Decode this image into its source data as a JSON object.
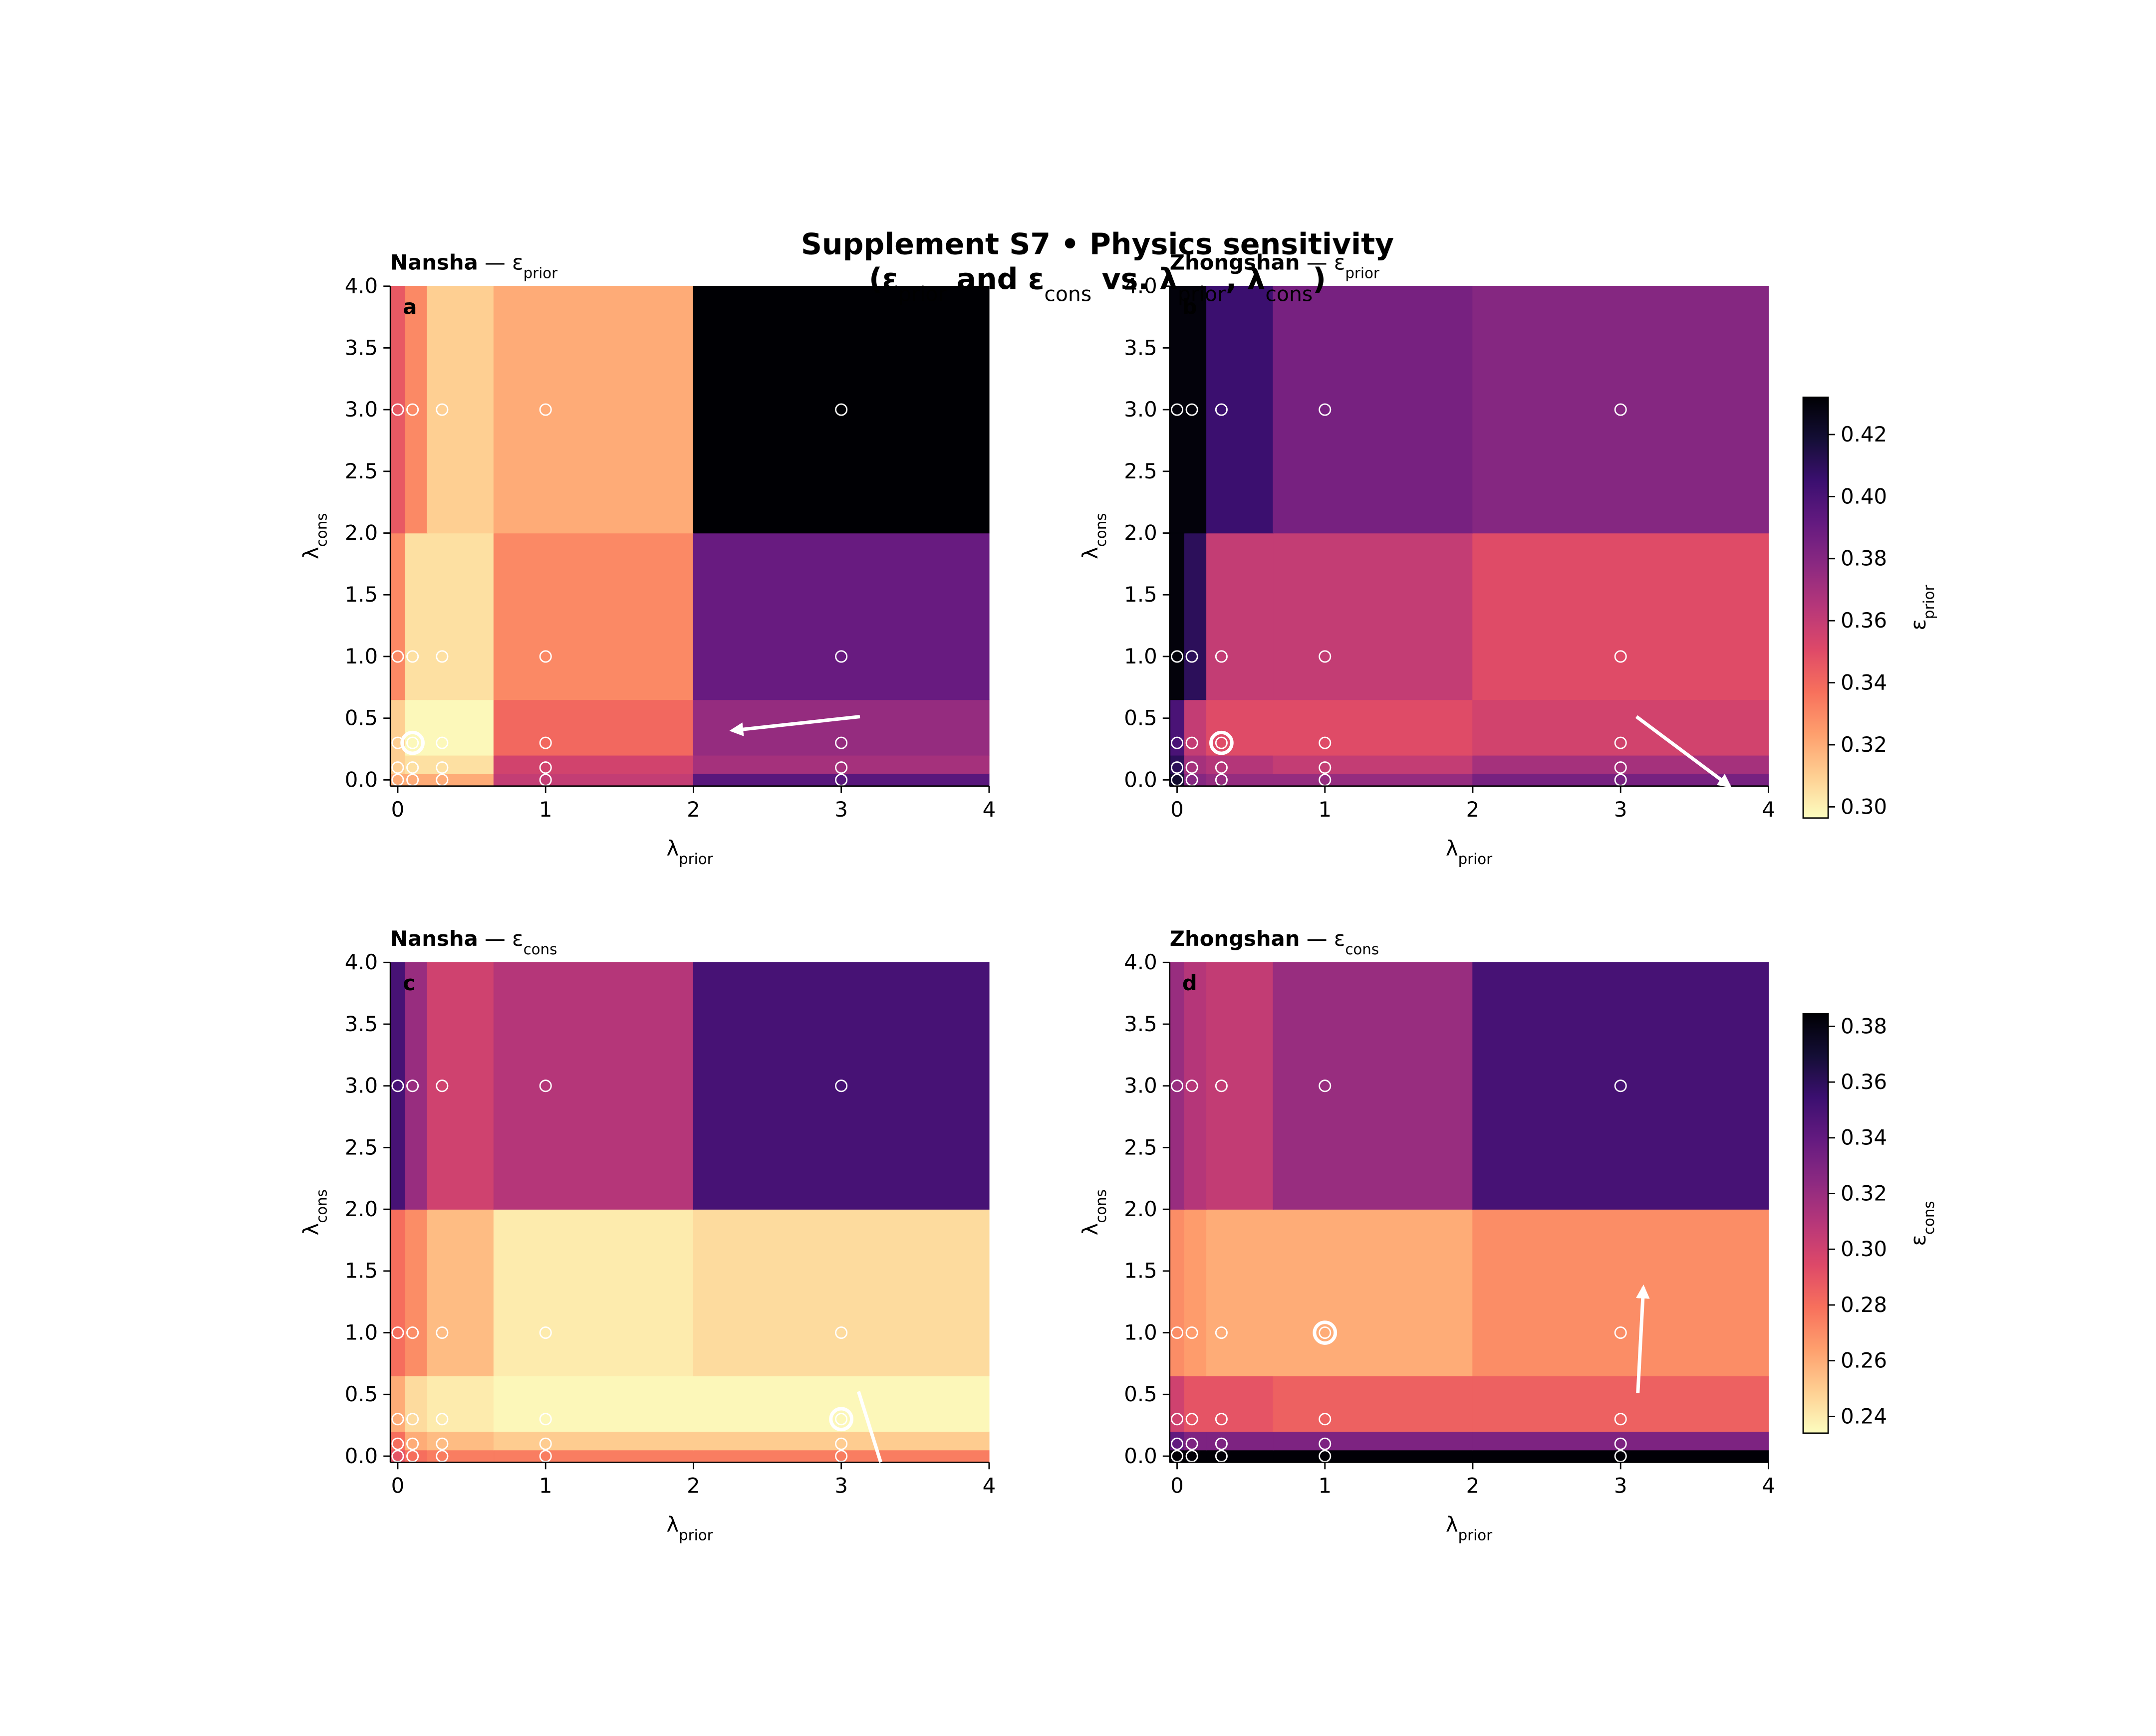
{
  "figure": {
    "title": [
      {
        "text": "Supplement S7 • Physics sensitivity",
        "bold": true
      }
    ],
    "subtitle": [
      {
        "text": "(ε",
        "bold": true
      },
      {
        "text": "prior",
        "sub": true
      },
      {
        "text": " and ε",
        "bold": true
      },
      {
        "text": "cons",
        "sub": true
      },
      {
        "text": " vs. λ",
        "bold": true
      },
      {
        "text": "prior",
        "sub": true
      },
      {
        "text": ", λ",
        "bold": true
      },
      {
        "text": "cons",
        "sub": true
      },
      {
        "text": ")",
        "bold": true
      }
    ]
  },
  "chart_data": [
    {
      "type": "heatmap",
      "panel_label": "a",
      "title": [
        {
          "text": "Nansha",
          "bold": true
        },
        {
          "text": " — ε"
        },
        {
          "text": "prior",
          "sub": true
        }
      ],
      "xlabel": [
        {
          "text": "λ"
        },
        {
          "text": "prior",
          "sub": true
        }
      ],
      "ylabel": [
        {
          "text": "λ"
        },
        {
          "text": "cons",
          "sub": true
        }
      ],
      "x": [
        0,
        0.1,
        0.3,
        1,
        3
      ],
      "y": [
        0,
        0.1,
        0.3,
        1,
        3
      ],
      "values": [
        [
          0.32,
          0.32,
          0.32,
          0.36,
          0.395
        ],
        [
          0.31,
          0.305,
          0.305,
          0.355,
          0.37
        ],
        [
          0.31,
          0.298,
          0.298,
          0.34,
          0.375
        ],
        [
          0.33,
          0.305,
          0.305,
          0.33,
          0.39
        ],
        [
          0.345,
          0.33,
          0.31,
          0.32,
          0.432
        ]
      ],
      "best": {
        "x": 0.1,
        "y": 0.3
      },
      "xlim": [
        -0.05,
        4
      ],
      "ylim": [
        -0.05,
        4
      ],
      "xticks": [
        0,
        1,
        2,
        3,
        4
      ],
      "yticks": [
        {
          "value": 0,
          "label": "0.0"
        },
        0.5,
        {
          "value": 1,
          "label": "1.0"
        },
        1.5,
        {
          "value": 2,
          "label": "2.0"
        },
        2.5,
        {
          "value": 3,
          "label": "3.0"
        },
        3.5,
        {
          "value": 4,
          "label": "4.0"
        }
      ]
    },
    {
      "type": "heatmap",
      "panel_label": "b",
      "title": [
        {
          "text": "Zhongshan",
          "bold": true
        },
        {
          "text": " — ε"
        },
        {
          "text": "prior",
          "sub": true
        }
      ],
      "xlabel": [
        {
          "text": "λ"
        },
        {
          "text": "prior",
          "sub": true
        }
      ],
      "ylabel": [
        {
          "text": "λ"
        },
        {
          "text": "cons",
          "sub": true
        }
      ],
      "x": [
        0,
        0.1,
        0.3,
        1,
        3
      ],
      "y": [
        0,
        0.1,
        0.3,
        1,
        3
      ],
      "values": [
        [
          0.42,
          0.38,
          0.375,
          0.375,
          0.385
        ],
        [
          0.41,
          0.37,
          0.365,
          0.36,
          0.37
        ],
        [
          0.4,
          0.36,
          0.35,
          0.35,
          0.355
        ],
        [
          0.43,
          0.41,
          0.36,
          0.36,
          0.35
        ],
        [
          0.43,
          0.43,
          0.405,
          0.385,
          0.38
        ]
      ],
      "best": {
        "x": 0.3,
        "y": 0.3
      },
      "xlim": [
        -0.05,
        4
      ],
      "ylim": [
        -0.05,
        4
      ],
      "xticks": [
        0,
        1,
        2,
        3,
        4
      ],
      "yticks": [
        {
          "value": 0,
          "label": "0.0"
        },
        0.5,
        {
          "value": 1,
          "label": "1.0"
        },
        1.5,
        {
          "value": 2,
          "label": "2.0"
        },
        2.5,
        {
          "value": 3,
          "label": "3.0"
        },
        3.5,
        {
          "value": 4,
          "label": "4.0"
        }
      ],
      "colorbar": {
        "label": [
          {
            "text": "ε"
          },
          {
            "text": "prior",
            "sub": true
          }
        ],
        "cmap": "magma_r",
        "lim": [
          0.2964,
          0.432
        ],
        "ticks": [
          {
            "value": 0.3,
            "label": "0.30"
          },
          0.32,
          0.34,
          0.36,
          0.38,
          {
            "value": 0.4,
            "label": "0.40"
          },
          0.42
        ]
      }
    },
    {
      "type": "heatmap",
      "panel_label": "c",
      "title": [
        {
          "text": "Nansha",
          "bold": true
        },
        {
          "text": " — ε"
        },
        {
          "text": "cons",
          "sub": true
        }
      ],
      "xlabel": [
        {
          "text": "λ"
        },
        {
          "text": "prior",
          "sub": true
        }
      ],
      "ylabel": [
        {
          "text": "λ"
        },
        {
          "text": "cons",
          "sub": true
        }
      ],
      "x": [
        0,
        0.1,
        0.3,
        1,
        3
      ],
      "y": [
        0,
        0.1,
        0.3,
        1,
        3
      ],
      "values": [
        [
          0.29,
          0.28,
          0.275,
          0.275,
          0.275
        ],
        [
          0.28,
          0.26,
          0.255,
          0.25,
          0.25
        ],
        [
          0.26,
          0.245,
          0.24,
          0.236,
          0.236
        ],
        [
          0.28,
          0.27,
          0.255,
          0.24,
          0.245
        ],
        [
          0.35,
          0.32,
          0.3,
          0.31,
          0.35
        ]
      ],
      "best": {
        "x": 3,
        "y": 0.3
      },
      "xlim": [
        -0.05,
        4
      ],
      "ylim": [
        -0.05,
        4
      ],
      "xticks": [
        0,
        1,
        2,
        3,
        4
      ],
      "yticks": [
        {
          "value": 0,
          "label": "0.0"
        },
        0.5,
        {
          "value": 1,
          "label": "1.0"
        },
        1.5,
        {
          "value": 2,
          "label": "2.0"
        },
        2.5,
        {
          "value": 3,
          "label": "3.0"
        },
        3.5,
        {
          "value": 4,
          "label": "4.0"
        }
      ]
    },
    {
      "type": "heatmap",
      "panel_label": "d",
      "title": [
        {
          "text": "Zhongshan",
          "bold": true
        },
        {
          "text": " — ε"
        },
        {
          "text": "cons",
          "sub": true
        }
      ],
      "xlabel": [
        {
          "text": "λ"
        },
        {
          "text": "prior",
          "sub": true
        }
      ],
      "ylabel": [
        {
          "text": "λ"
        },
        {
          "text": "cons",
          "sub": true
        }
      ],
      "x": [
        0,
        0.1,
        0.3,
        1,
        3
      ],
      "y": [
        0,
        0.1,
        0.3,
        1,
        3
      ],
      "values": [
        [
          0.384,
          0.384,
          0.384,
          0.384,
          0.384
        ],
        [
          0.34,
          0.33,
          0.33,
          0.33,
          0.33
        ],
        [
          0.3,
          0.29,
          0.29,
          0.285,
          0.285
        ],
        [
          0.27,
          0.265,
          0.26,
          0.26,
          0.27
        ],
        [
          0.32,
          0.31,
          0.305,
          0.32,
          0.35
        ]
      ],
      "best": {
        "x": 1,
        "y": 1
      },
      "xlim": [
        -0.05,
        4
      ],
      "ylim": [
        -0.05,
        4
      ],
      "xticks": [
        0,
        1,
        2,
        3,
        4
      ],
      "yticks": [
        {
          "value": 0,
          "label": "0.0"
        },
        0.5,
        {
          "value": 1,
          "label": "1.0"
        },
        1.5,
        {
          "value": 2,
          "label": "2.0"
        },
        2.5,
        {
          "value": 3,
          "label": "3.0"
        },
        3.5,
        {
          "value": 4,
          "label": "4.0"
        }
      ],
      "colorbar": {
        "label": [
          {
            "text": "ε"
          },
          {
            "text": "cons",
            "sub": true
          }
        ],
        "cmap": "magma_r",
        "lim": [
          0.234,
          0.3845
        ],
        "ticks": [
          0.24,
          0.26,
          0.28,
          {
            "value": 0.3,
            "label": "0.30"
          },
          0.32,
          0.34,
          0.36,
          0.38
        ]
      }
    }
  ]
}
